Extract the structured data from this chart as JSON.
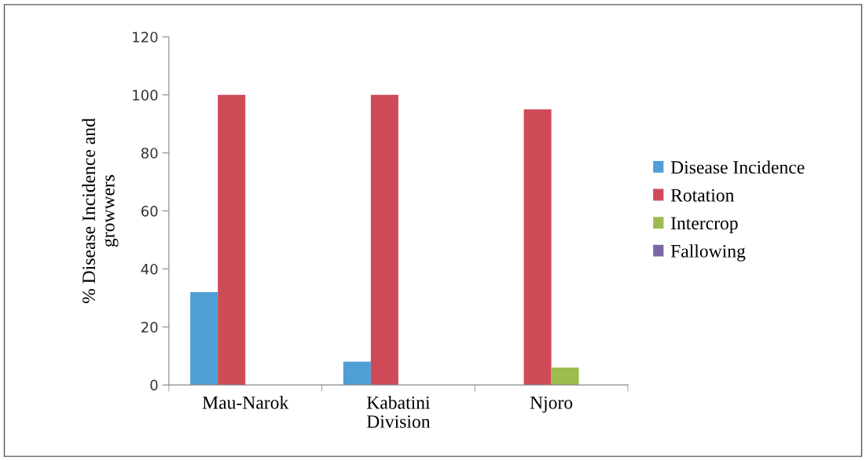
{
  "chart_data": {
    "type": "bar",
    "xlabel": "Division",
    "ylabel": "% Disease Incidence and\ngrowwers",
    "categories": [
      "Mau-Narok",
      "Kabatini",
      "Njoro"
    ],
    "series": [
      {
        "name": "Disease Incidence",
        "color": "#4f9fd6",
        "values": [
          32,
          8,
          0
        ]
      },
      {
        "name": "Rotation",
        "color": "#cf4a57",
        "values": [
          100,
          100,
          95
        ]
      },
      {
        "name": "Intercrop",
        "color": "#9dbb4e",
        "values": [
          0,
          0,
          6
        ]
      },
      {
        "name": "Fallowing",
        "color": "#7c66a8",
        "values": [
          0,
          0,
          0
        ]
      }
    ],
    "ylim": [
      0,
      120
    ],
    "yticks": [
      0,
      20,
      40,
      60,
      80,
      100,
      120
    ],
    "grid": false,
    "legend": "right"
  }
}
